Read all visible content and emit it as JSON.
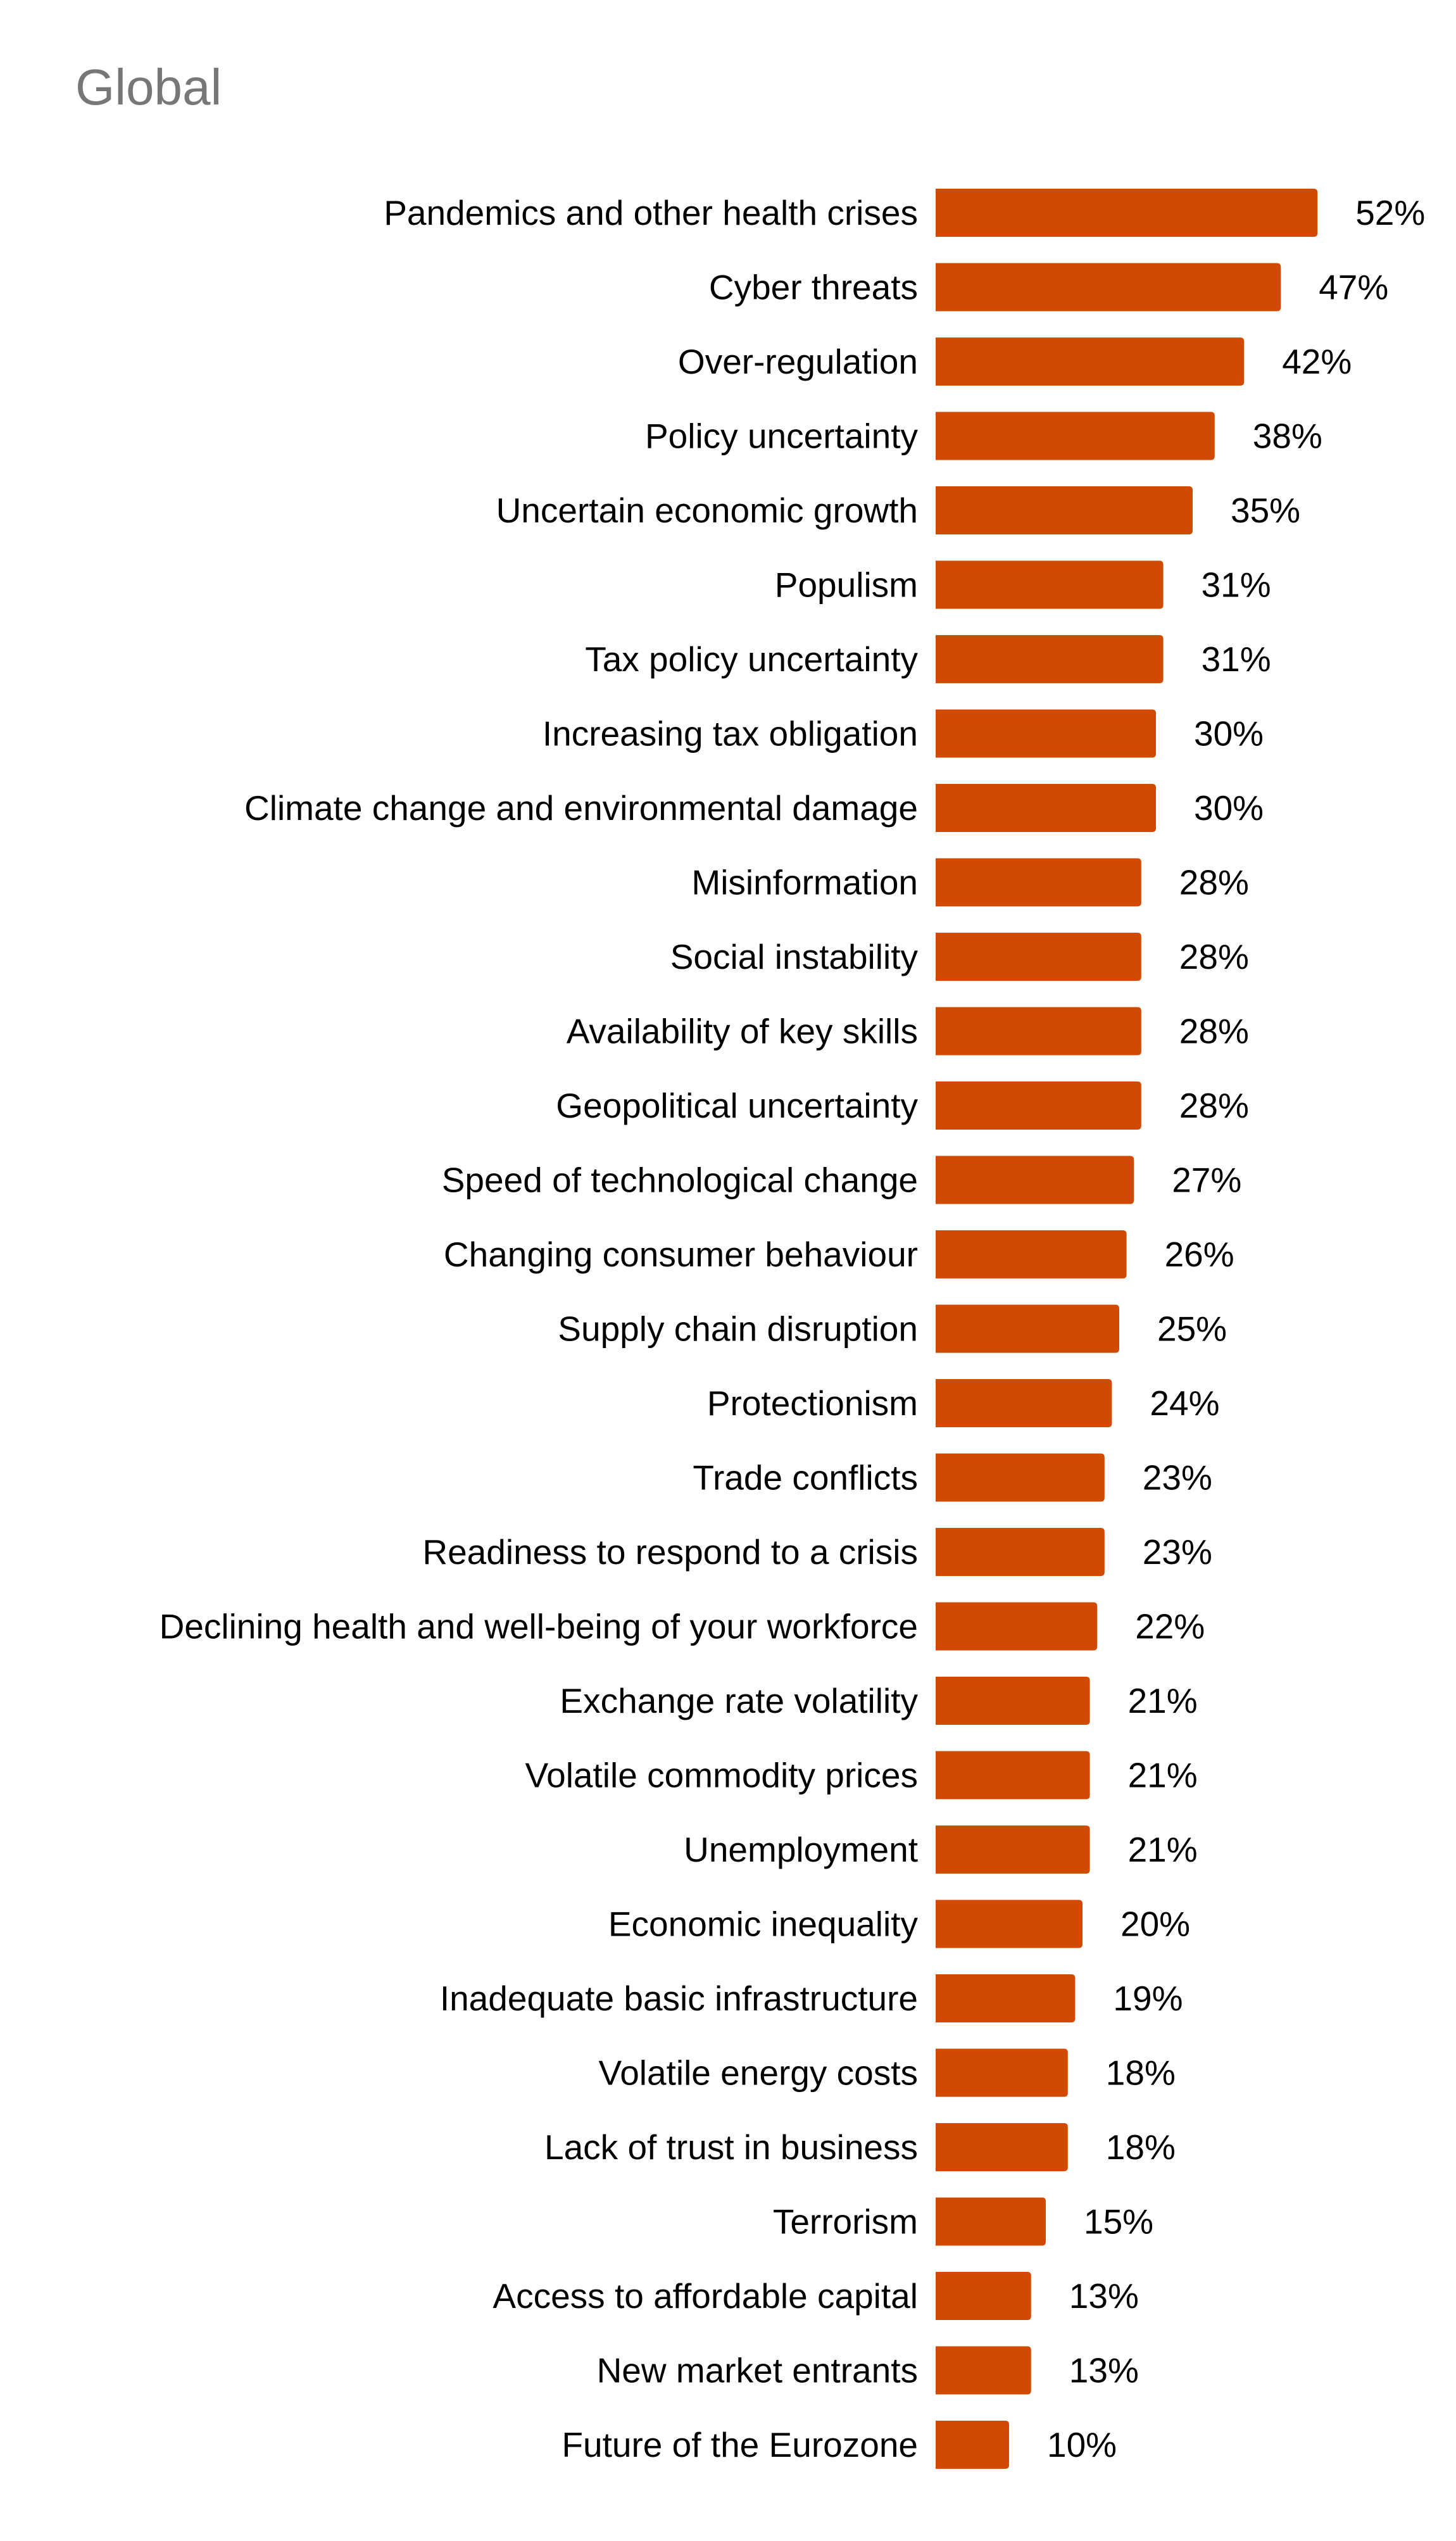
{
  "chart_data": {
    "type": "bar",
    "orientation": "horizontal",
    "title": "Global",
    "value_suffix": "%",
    "bar_color": "#D04A02",
    "label_color": "#000000",
    "title_color": "#777777",
    "grid": false,
    "categories": [
      "Pandemics and other health crises",
      "Cyber threats",
      "Over-regulation",
      "Policy uncertainty",
      "Uncertain economic growth",
      "Populism",
      "Tax policy uncertainty",
      "Increasing tax obligation",
      "Climate change and environmental damage",
      "Misinformation",
      "Social instability",
      "Availability of key skills",
      "Geopolitical uncertainty",
      "Speed of technological change",
      "Changing consumer behaviour",
      "Supply chain disruption",
      "Protectionism",
      "Trade conflicts",
      "Readiness to respond to a crisis",
      "Declining health and well-being of your workforce",
      "Exchange rate volatility",
      "Volatile commodity prices",
      "Unemployment",
      "Economic inequality",
      "Inadequate basic infrastructure",
      "Volatile energy costs",
      "Lack of trust in business",
      "Terrorism",
      "Access to affordable capital",
      "New market entrants",
      "Future of the Eurozone"
    ],
    "values": [
      52,
      47,
      42,
      38,
      35,
      31,
      31,
      30,
      30,
      28,
      28,
      28,
      28,
      27,
      26,
      25,
      24,
      23,
      23,
      22,
      21,
      21,
      21,
      20,
      19,
      18,
      18,
      15,
      13,
      13,
      10
    ],
    "labels": [
      "52%",
      "47%",
      "42%",
      "38%",
      "35%",
      "31%",
      "31%",
      "30%",
      "30%",
      "28%",
      "28%",
      "28%",
      "28%",
      "27%",
      "26%",
      "25%",
      "24%",
      "23%",
      "23%",
      "22%",
      "21%",
      "21%",
      "21%",
      "20%",
      "19%",
      "18%",
      "18%",
      "15%",
      "13%",
      "13%",
      "10%"
    ]
  }
}
